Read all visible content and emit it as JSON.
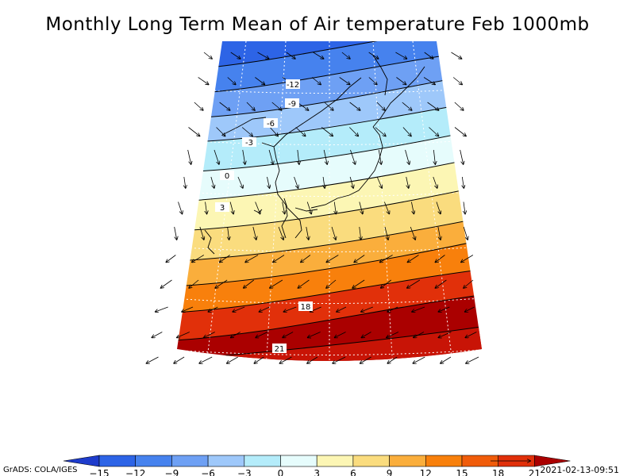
{
  "title": "Monthly Long Term Mean of Air temperature Feb 1000mb",
  "credit": "GrADS: COLA/IGES",
  "timestamp": "2021-02-13-09:51",
  "colors": {
    "bands": [
      "#1e3ccc",
      "#2d64e6",
      "#4682ee",
      "#6ea0f4",
      "#9ec8fa",
      "#b4ecfa",
      "#e6fcfc",
      "#fcf6b4",
      "#fadc7e",
      "#faae3c",
      "#f8800c",
      "#f05c0a",
      "#e1300a",
      "#c81406",
      "#aa0000"
    ],
    "contour": "#000000",
    "coast": "#000000",
    "vector": "#000000",
    "grid": "#ffffff"
  },
  "icons": [
    "colorbar-left-arrow-icon",
    "colorbar-right-arrow-icon",
    "reference-vector-icon"
  ],
  "colorbar": {
    "levels": [
      -15,
      -12,
      -9,
      -6,
      -3,
      0,
      3,
      6,
      9,
      12,
      15,
      18,
      21
    ],
    "tick_labels": [
      "−15",
      "−12",
      "−9",
      "−6",
      "−3",
      "0",
      "3",
      "6",
      "9",
      "12",
      "15",
      "18",
      "21"
    ]
  },
  "contour_labels": [
    {
      "value": "-12"
    },
    {
      "value": "-9"
    },
    {
      "value": "-6"
    },
    {
      "value": "-3"
    },
    {
      "value": "0"
    },
    {
      "value": "3"
    },
    {
      "value": "18"
    },
    {
      "value": "21"
    }
  ],
  "field": {
    "variable": "air temperature",
    "month": "Feb",
    "level": "1000mb",
    "contour_interval": 3,
    "bands_visible": [
      -15,
      -12,
      -9,
      -6,
      -3,
      0,
      3,
      6,
      9,
      12,
      15,
      18,
      21
    ],
    "wind_vectors": true
  }
}
